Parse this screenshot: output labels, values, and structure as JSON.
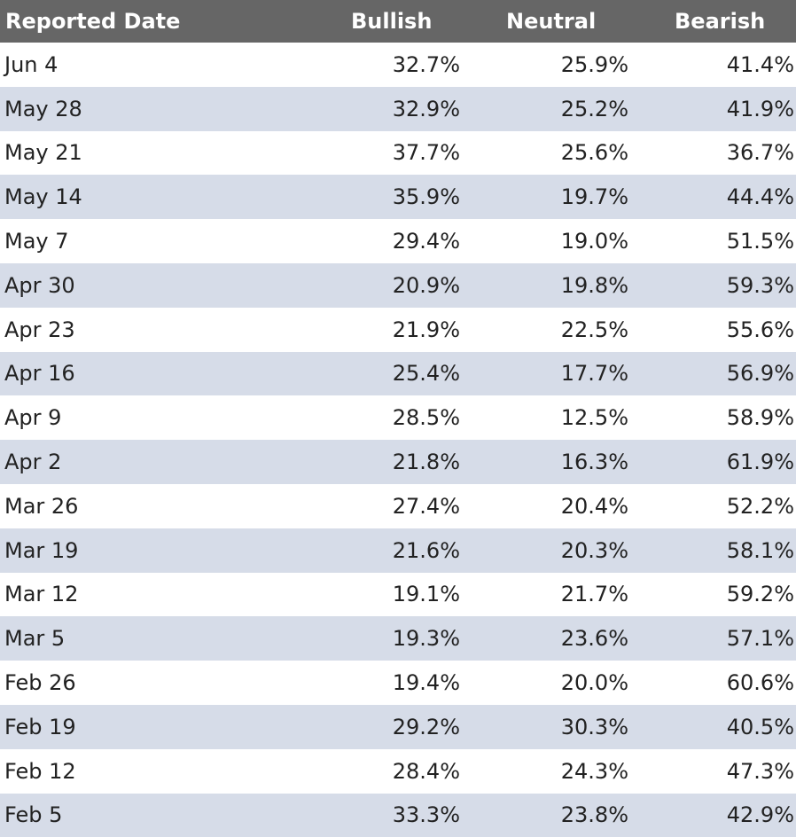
{
  "chart_data": {
    "type": "table",
    "columns": [
      "Reported Date",
      "Bullish",
      "Neutral",
      "Bearish"
    ],
    "rows": [
      [
        "Jun 4",
        "32.7%",
        "25.9%",
        "41.4%"
      ],
      [
        "May 28",
        "32.9%",
        "25.2%",
        "41.9%"
      ],
      [
        "May 21",
        "37.7%",
        "25.6%",
        "36.7%"
      ],
      [
        "May 14",
        "35.9%",
        "19.7%",
        "44.4%"
      ],
      [
        "May 7",
        "29.4%",
        "19.0%",
        "51.5%"
      ],
      [
        "Apr 30",
        "20.9%",
        "19.8%",
        "59.3%"
      ],
      [
        "Apr 23",
        "21.9%",
        "22.5%",
        "55.6%"
      ],
      [
        "Apr 16",
        "25.4%",
        "17.7%",
        "56.9%"
      ],
      [
        "Apr 9",
        "28.5%",
        "12.5%",
        "58.9%"
      ],
      [
        "Apr 2",
        "21.8%",
        "16.3%",
        "61.9%"
      ],
      [
        "Mar 26",
        "27.4%",
        "20.4%",
        "52.2%"
      ],
      [
        "Mar 19",
        "21.6%",
        "20.3%",
        "58.1%"
      ],
      [
        "Mar 12",
        "19.1%",
        "21.7%",
        "59.2%"
      ],
      [
        "Mar 5",
        "19.3%",
        "23.6%",
        "57.1%"
      ],
      [
        "Feb 26",
        "19.4%",
        "20.0%",
        "60.6%"
      ],
      [
        "Feb 19",
        "29.2%",
        "30.3%",
        "40.5%"
      ],
      [
        "Feb 12",
        "28.4%",
        "24.3%",
        "47.3%"
      ],
      [
        "Feb 5",
        "33.3%",
        "23.8%",
        "42.9%"
      ]
    ]
  },
  "colors": {
    "header_bg": "#666666",
    "header_text": "#ffffff",
    "stripe_bg": "#d6dce8",
    "row_bg": "#ffffff",
    "text": "#222222"
  }
}
